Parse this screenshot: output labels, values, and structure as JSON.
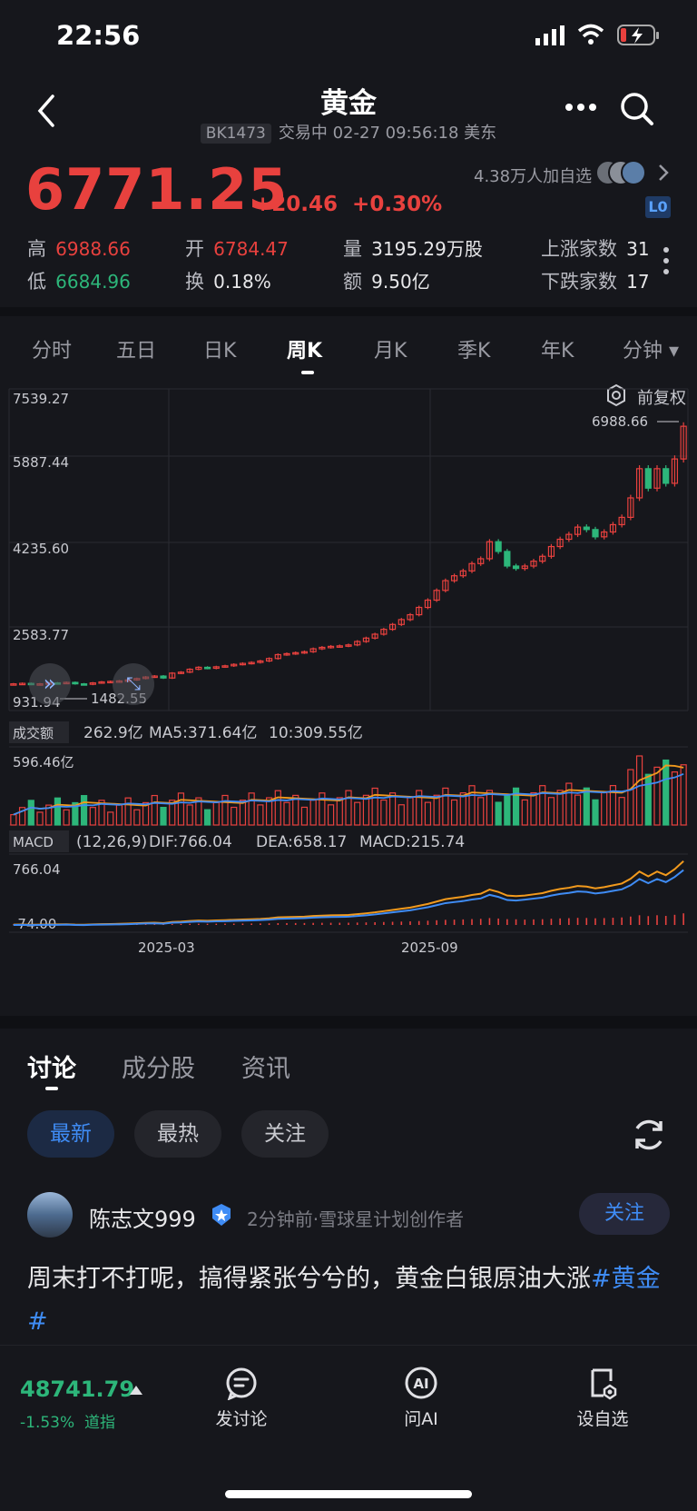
{
  "status": {
    "time": "22:56"
  },
  "header": {
    "title": "黄金",
    "code": "BK1473",
    "trading_status": "交易中 02-27 09:56:18 美东",
    "more_icon": "more-dots-icon",
    "search_icon": "search-icon",
    "back_icon": "back-arrow-icon"
  },
  "quote": {
    "price": "6771.25",
    "change": "+20.46",
    "change_pct": "+0.30%",
    "watchers": "4.38万人加自选",
    "level_badge": "L0",
    "stats": {
      "high_label": "高",
      "high": "6988.66",
      "open_label": "开",
      "open": "6784.47",
      "volume_label": "量",
      "volume": "3195.29万股",
      "up_label": "上涨家数",
      "up": "31",
      "low_label": "低",
      "low": "6684.96",
      "turnover_label": "换",
      "turnover": "0.18%",
      "amount_label": "额",
      "amount": "9.50亿",
      "down_label": "下跌家数",
      "down": "17"
    }
  },
  "period_tabs": [
    "分时",
    "五日",
    "日K",
    "周K",
    "月K",
    "季K",
    "年K",
    "分钟 ▾"
  ],
  "active_period": "周K",
  "adjust": "前复权",
  "chart_data": [
    {
      "type": "candlestick",
      "title": "",
      "y_ticks": [
        "7539.27",
        "5887.44",
        "4235.60",
        "2583.77",
        "931.94"
      ],
      "ylim": [
        931.94,
        7539.27
      ],
      "x_ticks": [
        "2025-03",
        "2025-09"
      ],
      "max_label": "6988.66",
      "min_label": "1482.55",
      "close": [
        1480,
        1490,
        1470,
        1480,
        1500,
        1495,
        1510,
        1480,
        1470,
        1500,
        1520,
        1530,
        1540,
        1560,
        1590,
        1620,
        1640,
        1600,
        1700,
        1720,
        1780,
        1820,
        1800,
        1830,
        1850,
        1880,
        1900,
        1920,
        1950,
        2000,
        2080,
        2100,
        2120,
        2140,
        2200,
        2230,
        2250,
        2260,
        2280,
        2350,
        2420,
        2500,
        2600,
        2700,
        2800,
        2900,
        3050,
        3200,
        3400,
        3600,
        3700,
        3800,
        3950,
        4050,
        4400,
        4200,
        3900,
        3850,
        3900,
        4000,
        4100,
        4300,
        4450,
        4550,
        4700,
        4650,
        4500,
        4600,
        4750,
        4900,
        5300,
        5900,
        5500,
        5900,
        5600,
        6100,
        6771.25
      ],
      "grid": true
    },
    {
      "type": "bar",
      "title": "成交额",
      "series": [
        {
          "name": "成交额",
          "value": "262.9亿"
        },
        {
          "name": "MA5",
          "value": "371.64亿"
        },
        {
          "name": "10",
          "value": "309.55亿"
        }
      ],
      "y_ticks": [
        "596.46亿"
      ]
    },
    {
      "type": "line",
      "title": "MACD",
      "params": "(12,26,9)",
      "series": [
        {
          "name": "DIF",
          "value": "766.04"
        },
        {
          "name": "DEA",
          "value": "658.17"
        },
        {
          "name": "MACD",
          "value": "215.74"
        }
      ],
      "y_ticks": [
        "766.04",
        "-74.00"
      ]
    }
  ],
  "colors": {
    "up": "#e8413e",
    "down": "#2db67a",
    "ma5": "#f29a1d",
    "ma10": "#3f8cf5",
    "accent": "#3f8cf5",
    "bg": "#16171c"
  },
  "discussion": {
    "tabs": [
      "讨论",
      "成分股",
      "资讯"
    ],
    "filters": [
      "最新",
      "最热",
      "关注"
    ],
    "post": {
      "user": "陈志文999",
      "meta": "2分钟前·雪球星计划创作者",
      "follow": "关注",
      "text": "周末打不打呢，搞得紧张兮兮的，黄金白银原油大涨",
      "tag": "#黄金#"
    }
  },
  "bottom_bar": {
    "index_value": "48741.79",
    "index_change": "-1.53%",
    "index_name": "道指",
    "items": [
      {
        "label": "发讨论",
        "icon": "comment-icon"
      },
      {
        "label": "问AI",
        "icon": "ai-icon"
      },
      {
        "label": "设自选",
        "icon": "add-watchlist-icon"
      }
    ]
  }
}
